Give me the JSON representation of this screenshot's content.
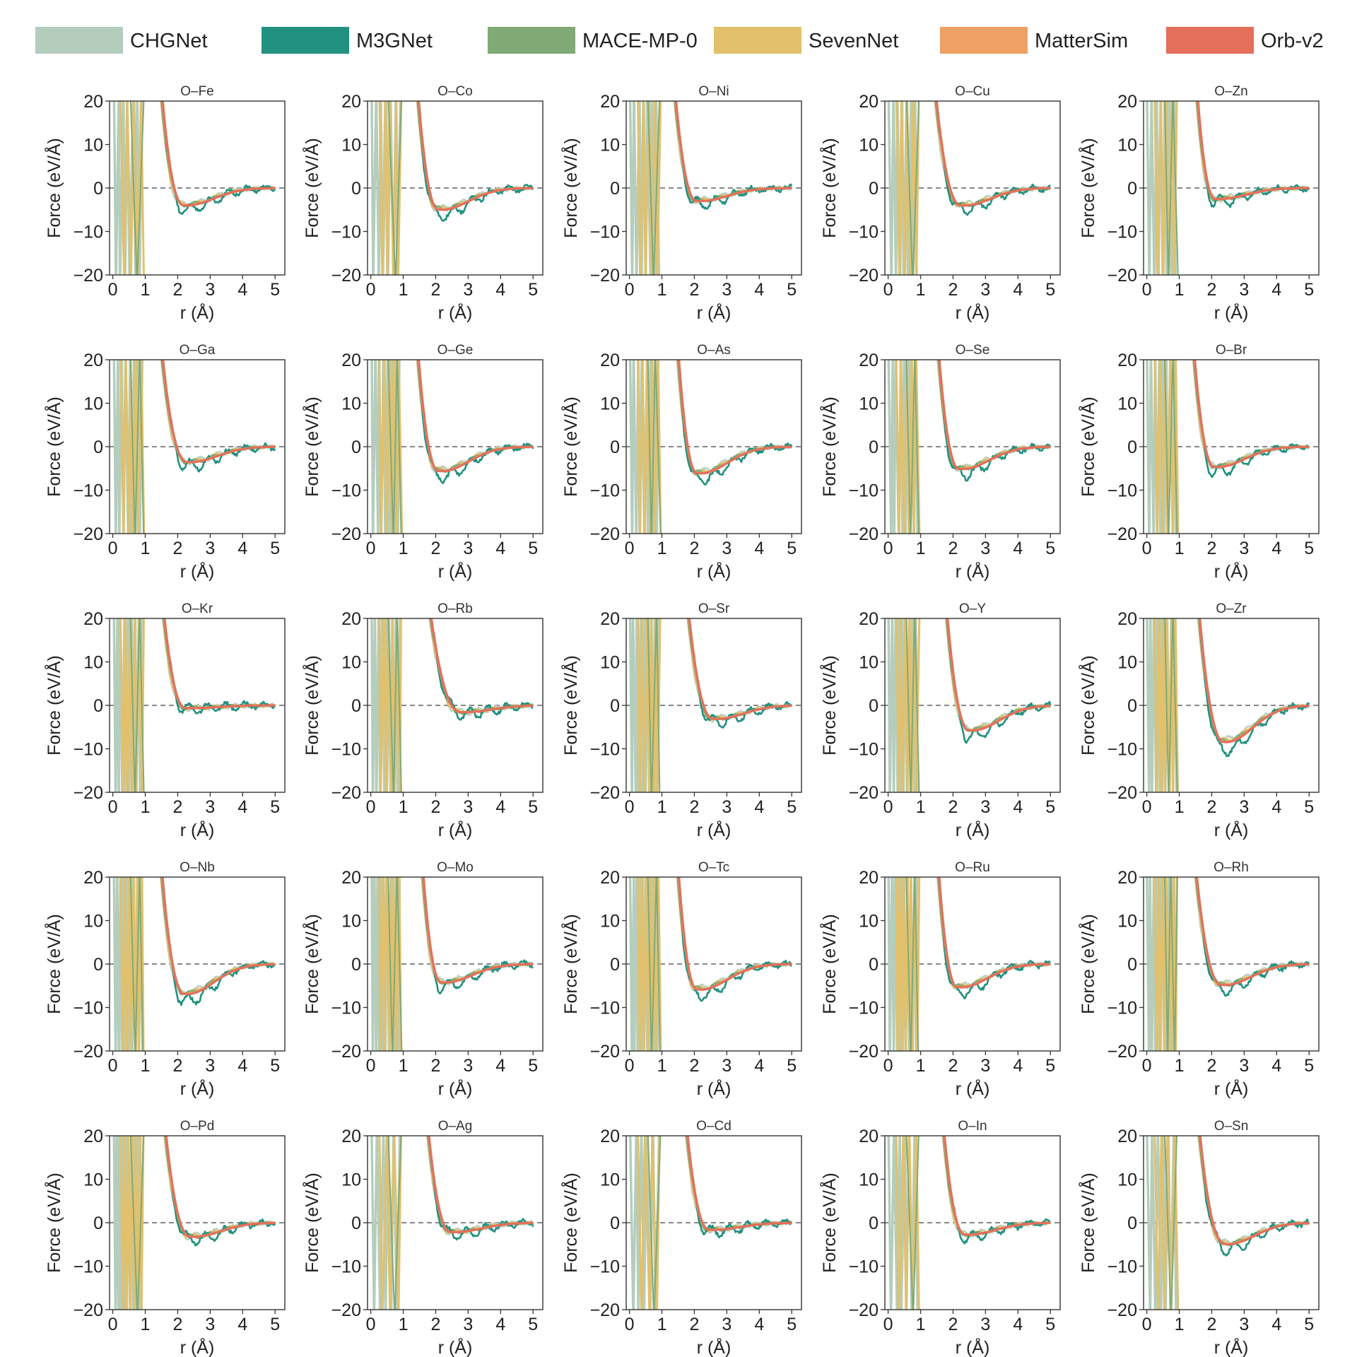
{
  "legend": [
    {
      "name": "CHGNet",
      "color": "#b4cdbd"
    },
    {
      "name": "M3GNet",
      "color": "#23917f"
    },
    {
      "name": "MACE-MP-0",
      "color": "#80aa76"
    },
    {
      "name": "SevenNet",
      "color": "#e2c06c"
    },
    {
      "name": "MatterSim",
      "color": "#eea164"
    },
    {
      "name": "Orb-v2",
      "color": "#e46f5a"
    }
  ],
  "chart_data": {
    "type": "line",
    "layout": "grid 5x5",
    "xlabel": "r (Å)",
    "ylabel": "Force (eV/Å)",
    "xlim": [
      -0.1,
      5.3
    ],
    "ylim": [
      -20,
      20
    ],
    "xticks": [
      "0",
      "1",
      "2",
      "3",
      "4",
      "5"
    ],
    "yticks": [
      "20",
      "10",
      "0",
      "−10",
      "−20"
    ],
    "reference_line": {
      "y": 0,
      "style": "dashed"
    },
    "series_names": [
      "CHGNet",
      "M3GNet",
      "MACE-MP-0",
      "SevenNet",
      "MatterSim",
      "Orb-v2"
    ],
    "panels": [
      {
        "title": "O–Fe",
        "r0": 1.45,
        "rmin": 2.1,
        "fmin": -4.0
      },
      {
        "title": "O–Co",
        "r0": 1.4,
        "rmin": 2.0,
        "fmin": -5.0
      },
      {
        "title": "O–Ni",
        "r0": 1.35,
        "rmin": 2.0,
        "fmin": -3.0
      },
      {
        "title": "O–Cu",
        "r0": 1.4,
        "rmin": 2.15,
        "fmin": -4.0
      },
      {
        "title": "O–Zn",
        "r0": 1.5,
        "rmin": 2.05,
        "fmin": -2.5
      },
      {
        "title": "O–Ga",
        "r0": 1.45,
        "rmin": 2.2,
        "fmin": -3.5
      },
      {
        "title": "O–Ge",
        "r0": 1.4,
        "rmin": 2.0,
        "fmin": -5.5
      },
      {
        "title": "O–As",
        "r0": 1.45,
        "rmin": 2.0,
        "fmin": -6.0
      },
      {
        "title": "O–Se",
        "r0": 1.5,
        "rmin": 2.1,
        "fmin": -5.0
      },
      {
        "title": "O–Br",
        "r0": 1.4,
        "rmin": 2.0,
        "fmin": -4.5
      },
      {
        "title": "O–Kr",
        "r0": 1.5,
        "rmin": 2.2,
        "fmin": -0.6
      },
      {
        "title": "O–Rb",
        "r0": 1.75,
        "rmin": 2.7,
        "fmin": -1.5
      },
      {
        "title": "O–Sr",
        "r0": 1.75,
        "rmin": 2.5,
        "fmin": -3.0
      },
      {
        "title": "O–Y",
        "r0": 1.75,
        "rmin": 2.4,
        "fmin": -5.5
      },
      {
        "title": "O–Zr",
        "r0": 1.55,
        "rmin": 2.25,
        "fmin": -8.0
      },
      {
        "title": "O–Nb",
        "r0": 1.45,
        "rmin": 2.1,
        "fmin": -6.5
      },
      {
        "title": "O–Mo",
        "r0": 1.55,
        "rmin": 2.1,
        "fmin": -4.0
      },
      {
        "title": "O–Tc",
        "r0": 1.45,
        "rmin": 2.0,
        "fmin": -5.5
      },
      {
        "title": "O–Ru",
        "r0": 1.5,
        "rmin": 2.05,
        "fmin": -5.0
      },
      {
        "title": "O–Rh",
        "r0": 1.45,
        "rmin": 2.2,
        "fmin": -4.5
      },
      {
        "title": "O–Pd",
        "r0": 1.55,
        "rmin": 2.3,
        "fmin": -3.0
      },
      {
        "title": "O–Ag",
        "r0": 1.7,
        "rmin": 2.4,
        "fmin": -2.0
      },
      {
        "title": "O–Cd",
        "r0": 1.7,
        "rmin": 2.4,
        "fmin": -1.5
      },
      {
        "title": "O–In",
        "r0": 1.65,
        "rmin": 2.3,
        "fmin": -2.5
      },
      {
        "title": "O–Sn",
        "r0": 1.55,
        "rmin": 2.3,
        "fmin": -4.5
      }
    ]
  }
}
